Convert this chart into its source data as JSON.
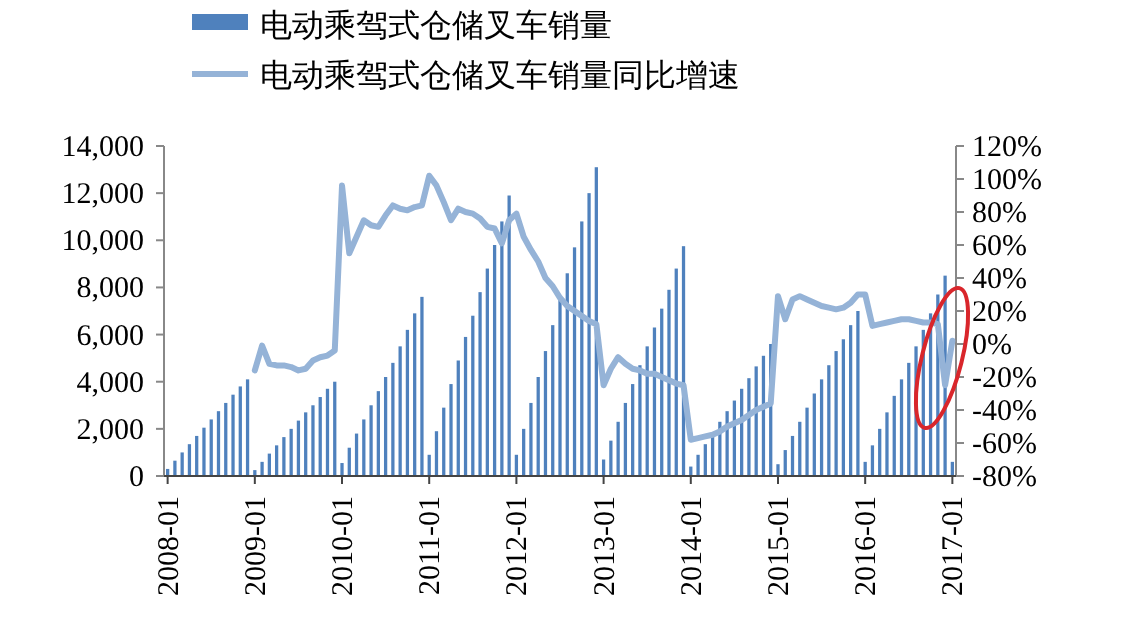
{
  "chart_data": {
    "type": "bar",
    "legend": "top",
    "categories": [
      "2008-01",
      null,
      null,
      null,
      null,
      null,
      null,
      null,
      null,
      null,
      null,
      null,
      "2009-01",
      null,
      null,
      null,
      null,
      null,
      null,
      null,
      null,
      null,
      null,
      null,
      "2010-01",
      null,
      null,
      null,
      null,
      null,
      null,
      null,
      null,
      null,
      null,
      null,
      "2011-01",
      null,
      null,
      null,
      null,
      null,
      null,
      null,
      null,
      null,
      null,
      null,
      "2012-01",
      null,
      null,
      null,
      null,
      null,
      null,
      null,
      null,
      null,
      null,
      null,
      "2013-01",
      null,
      null,
      null,
      null,
      null,
      null,
      null,
      null,
      null,
      null,
      null,
      "2014-01",
      null,
      null,
      null,
      null,
      null,
      null,
      null,
      null,
      null,
      null,
      null,
      "2015-01",
      null,
      null,
      null,
      null,
      null,
      null,
      null,
      null,
      null,
      null,
      null,
      "2016-01",
      null,
      null,
      null,
      null,
      null,
      null,
      null,
      null,
      null,
      null,
      null,
      "2017-01"
    ],
    "ylim": [
      0,
      14000
    ],
    "yticks": [
      0,
      {
        "value": 2000,
        "label": "2,000"
      },
      {
        "value": 4000,
        "label": "4,000"
      },
      {
        "value": 6000,
        "label": "6,000"
      },
      {
        "value": 8000,
        "label": "8,000"
      },
      {
        "value": 10000,
        "label": "10,000"
      },
      {
        "value": 12000,
        "label": "12,000"
      },
      {
        "value": 14000,
        "label": "14,000"
      }
    ],
    "y2lim": [
      -80,
      120
    ],
    "y2ticks": [
      {
        "value": -80,
        "label": "-80%"
      },
      {
        "value": -60,
        "label": "-60%"
      },
      {
        "value": -40,
        "label": "-40%"
      },
      {
        "value": -20,
        "label": "-20%"
      },
      {
        "value": 0,
        "label": "0%"
      },
      {
        "value": 20,
        "label": "20%"
      },
      {
        "value": 40,
        "label": "40%"
      },
      {
        "value": 60,
        "label": "60%"
      },
      {
        "value": 80,
        "label": "80%"
      },
      {
        "value": 100,
        "label": "100%"
      },
      {
        "value": 120,
        "label": "120%"
      }
    ],
    "series": [
      {
        "name": "电动乘驾式仓储叉车销量",
        "color": "#4f81bd",
        "values": [
          300,
          650,
          1000,
          1350,
          1700,
          2050,
          2400,
          2750,
          3100,
          3450,
          3800,
          4100,
          250,
          600,
          950,
          1300,
          1650,
          2000,
          2350,
          2700,
          3000,
          3350,
          3700,
          4000,
          550,
          1200,
          1800,
          2400,
          3000,
          3600,
          4200,
          4800,
          5500,
          6200,
          6900,
          7600,
          900,
          1900,
          2900,
          3900,
          4900,
          5900,
          6800,
          7800,
          8800,
          9800,
          10800,
          11900,
          900,
          2000,
          3100,
          4200,
          5300,
          6400,
          7500,
          8600,
          9700,
          10800,
          12000,
          13100,
          700,
          1500,
          2300,
          3100,
          3900,
          4700,
          5500,
          6300,
          7100,
          7900,
          8800,
          9750,
          400,
          900,
          1350,
          1800,
          2300,
          2750,
          3200,
          3700,
          4150,
          4650,
          5100,
          5600,
          500,
          1100,
          1700,
          2300,
          2900,
          3500,
          4100,
          4700,
          5300,
          5800,
          6400,
          7000,
          600,
          1300,
          2000,
          2700,
          3400,
          4100,
          4800,
          5500,
          6200,
          6900,
          7700,
          8500,
          600
        ]
      },
      {
        "name": "电动乘驾式仓储叉车销量同比增速",
        "type": "line",
        "axis": "y2",
        "color": "#95b3d7",
        "values": [
          null,
          null,
          null,
          null,
          null,
          null,
          null,
          null,
          null,
          null,
          null,
          null,
          -16,
          -1,
          -12,
          -13,
          -13,
          -14,
          -16,
          -15,
          -10,
          -8,
          -7,
          -4,
          96,
          55,
          65,
          75,
          72,
          71,
          78,
          84,
          82,
          81,
          83,
          84,
          102,
          96,
          86,
          75,
          82,
          80,
          79,
          76,
          71,
          70,
          61,
          75,
          79,
          65,
          57,
          50,
          40,
          35,
          28,
          23,
          20,
          17,
          14,
          12,
          -25,
          -15,
          -8,
          -12,
          -15,
          -16,
          -18,
          -18,
          -20,
          -22,
          -24,
          -25,
          -58,
          -57,
          -56,
          -55,
          -53,
          -50,
          -48,
          -46,
          -43,
          -40,
          -38,
          -36,
          29,
          15,
          27,
          29,
          27,
          25,
          23,
          22,
          21,
          22,
          25,
          30,
          30,
          11,
          12,
          13,
          14,
          15,
          15,
          14,
          13,
          13,
          12,
          -25,
          2
        ]
      }
    ]
  }
}
